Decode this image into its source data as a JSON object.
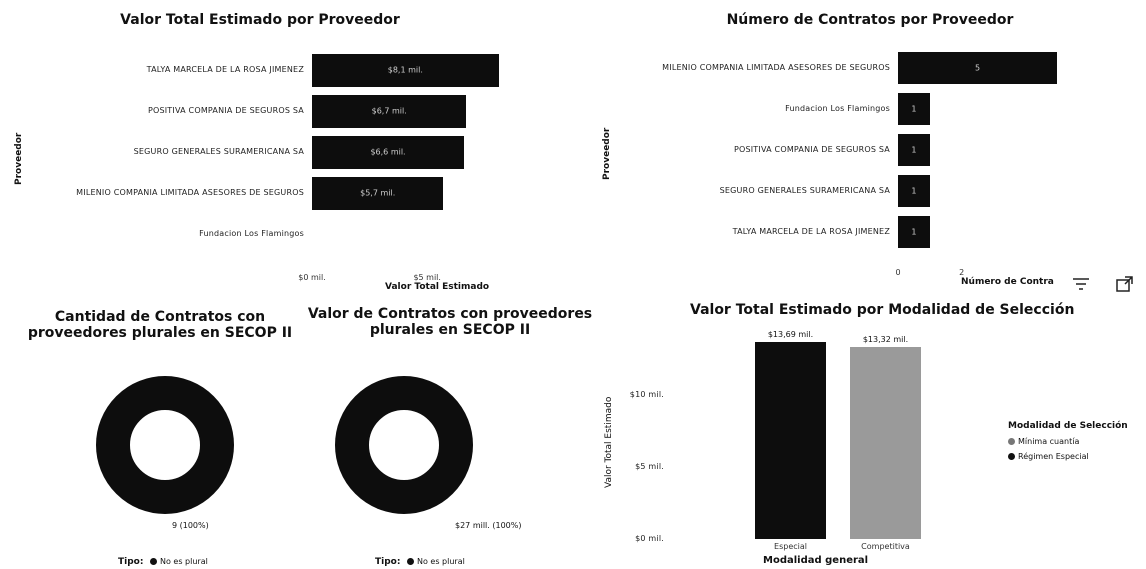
{
  "icons": {
    "filter": "filter-icon",
    "focus": "focus-mode-icon"
  },
  "colors": {
    "bar": "#0d0d0d",
    "bar_label": "#cfcfcf",
    "competitiva_fill": "#9a9a9a"
  },
  "chart_data": [
    {
      "id": "valor_por_proveedor",
      "type": "bar",
      "orientation": "horizontal",
      "title": "Valor Total Estimado por Proveedor",
      "ylabel": "Proveedor",
      "xlabel": "Valor Total Estimado",
      "categories": [
        "TALYA MARCELA DE LA ROSA JIMENEZ",
        "POSITIVA COMPANIA DE SEGUROS SA",
        "SEGURO GENERALES SURAMERICANA SA",
        "MILENIO COMPANIA LIMITADA ASESORES DE SEGUROS",
        "Fundacion Los Flamingos"
      ],
      "values": [
        8.1,
        6.7,
        6.6,
        5.7,
        0
      ],
      "data_labels": [
        "$8,1 mil.",
        "$6,7 mil.",
        "$6,6 mil.",
        "$5,7 mil.",
        ""
      ],
      "xticks": [
        "$0 mil.",
        "$5 mil."
      ],
      "xtick_values": [
        0,
        5
      ],
      "xlim": [
        0,
        11.5
      ]
    },
    {
      "id": "contratos_por_proveedor",
      "type": "bar",
      "orientation": "horizontal",
      "title": "Número de Contratos por Proveedor",
      "ylabel": "Proveedor",
      "xlabel": "Número de Contra",
      "categories": [
        "MILENIO COMPANIA LIMITADA ASESORES DE SEGUROS",
        "Fundacion Los Flamingos",
        "POSITIVA COMPANIA DE SEGUROS SA",
        "SEGURO GENERALES SURAMERICANA SA",
        "TALYA MARCELA DE LA ROSA JIMENEZ"
      ],
      "values": [
        5,
        1,
        1,
        1,
        1
      ],
      "data_labels": [
        "5",
        "1",
        "1",
        "1",
        "1"
      ],
      "xticks": [
        "0",
        "2"
      ],
      "xtick_values": [
        0,
        2
      ],
      "xlim": [
        0,
        5.5
      ]
    },
    {
      "id": "cantidad_plurales",
      "type": "pie",
      "title": "Cantidad de Contratos con proveedores plurales en SECOP II",
      "categories": [
        "No es plural"
      ],
      "values": [
        9
      ],
      "data_labels": [
        "9 (100%)"
      ],
      "legend_title": "Tipo:",
      "legend_items": [
        "No es plural"
      ]
    },
    {
      "id": "valor_plurales",
      "type": "pie",
      "title": "Valor de Contratos con proveedores plurales en SECOP II",
      "categories": [
        "No es plural"
      ],
      "values": [
        27
      ],
      "data_labels": [
        "$27 mill. (100%)"
      ],
      "legend_title": "Tipo:",
      "legend_items": [
        "No es plural"
      ]
    },
    {
      "id": "valor_por_modalidad",
      "type": "bar",
      "orientation": "vertical",
      "title": "Valor Total Estimado por Modalidad de Selección",
      "xlabel": "Modalidad general",
      "ylabel": "Valor Total Estimado",
      "categories": [
        "Especial",
        "Competitiva"
      ],
      "values": [
        13.69,
        13.32
      ],
      "data_labels": [
        "$13,69 mil.",
        "$13,32 mil."
      ],
      "yticks": [
        "$0 mil.",
        "$5 mil.",
        "$10 mil."
      ],
      "ytick_values": [
        0,
        5,
        10
      ],
      "ylim": [
        0,
        14.5
      ],
      "legend_title": "Modalidad de Selección",
      "legend_items": [
        "Mínima cuantía",
        "Régimen Especial"
      ]
    }
  ]
}
